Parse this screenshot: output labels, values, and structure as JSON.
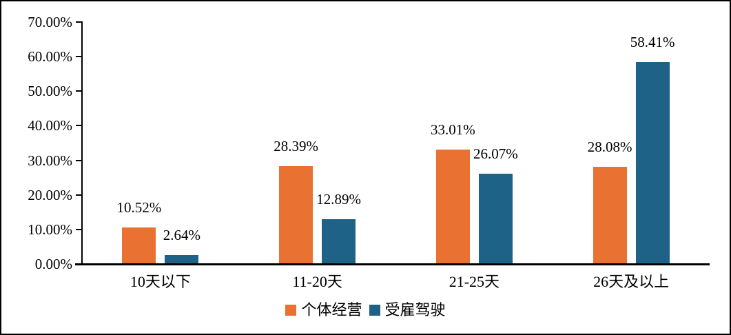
{
  "chart_data": {
    "type": "bar",
    "title": "",
    "xlabel": "",
    "ylabel": "",
    "categories": [
      "10天以下",
      "11-20天",
      "21-25天",
      "26天及以上"
    ],
    "series": [
      {
        "name": "个体经营",
        "color": "#E97132",
        "values": [
          10.52,
          28.39,
          33.01,
          28.08
        ],
        "labels": [
          "10.52%",
          "28.39%",
          "33.01%",
          "28.08%"
        ]
      },
      {
        "name": "受雇驾驶",
        "color": "#1F6287",
        "values": [
          2.64,
          12.89,
          26.07,
          58.41
        ],
        "labels": [
          "2.64%",
          "12.89%",
          "26.07%",
          "58.41%"
        ]
      }
    ],
    "ylim": [
      0,
      70
    ],
    "yticks": [
      0,
      10,
      20,
      30,
      40,
      50,
      60,
      70
    ],
    "ytick_labels": [
      "0.00%",
      "10.00%",
      "20.00%",
      "30.00%",
      "40.00%",
      "50.00%",
      "60.00%",
      "70.00%"
    ],
    "grid": false,
    "legend_position": "bottom",
    "axis_color": "#000000",
    "label_color": "#000000"
  }
}
